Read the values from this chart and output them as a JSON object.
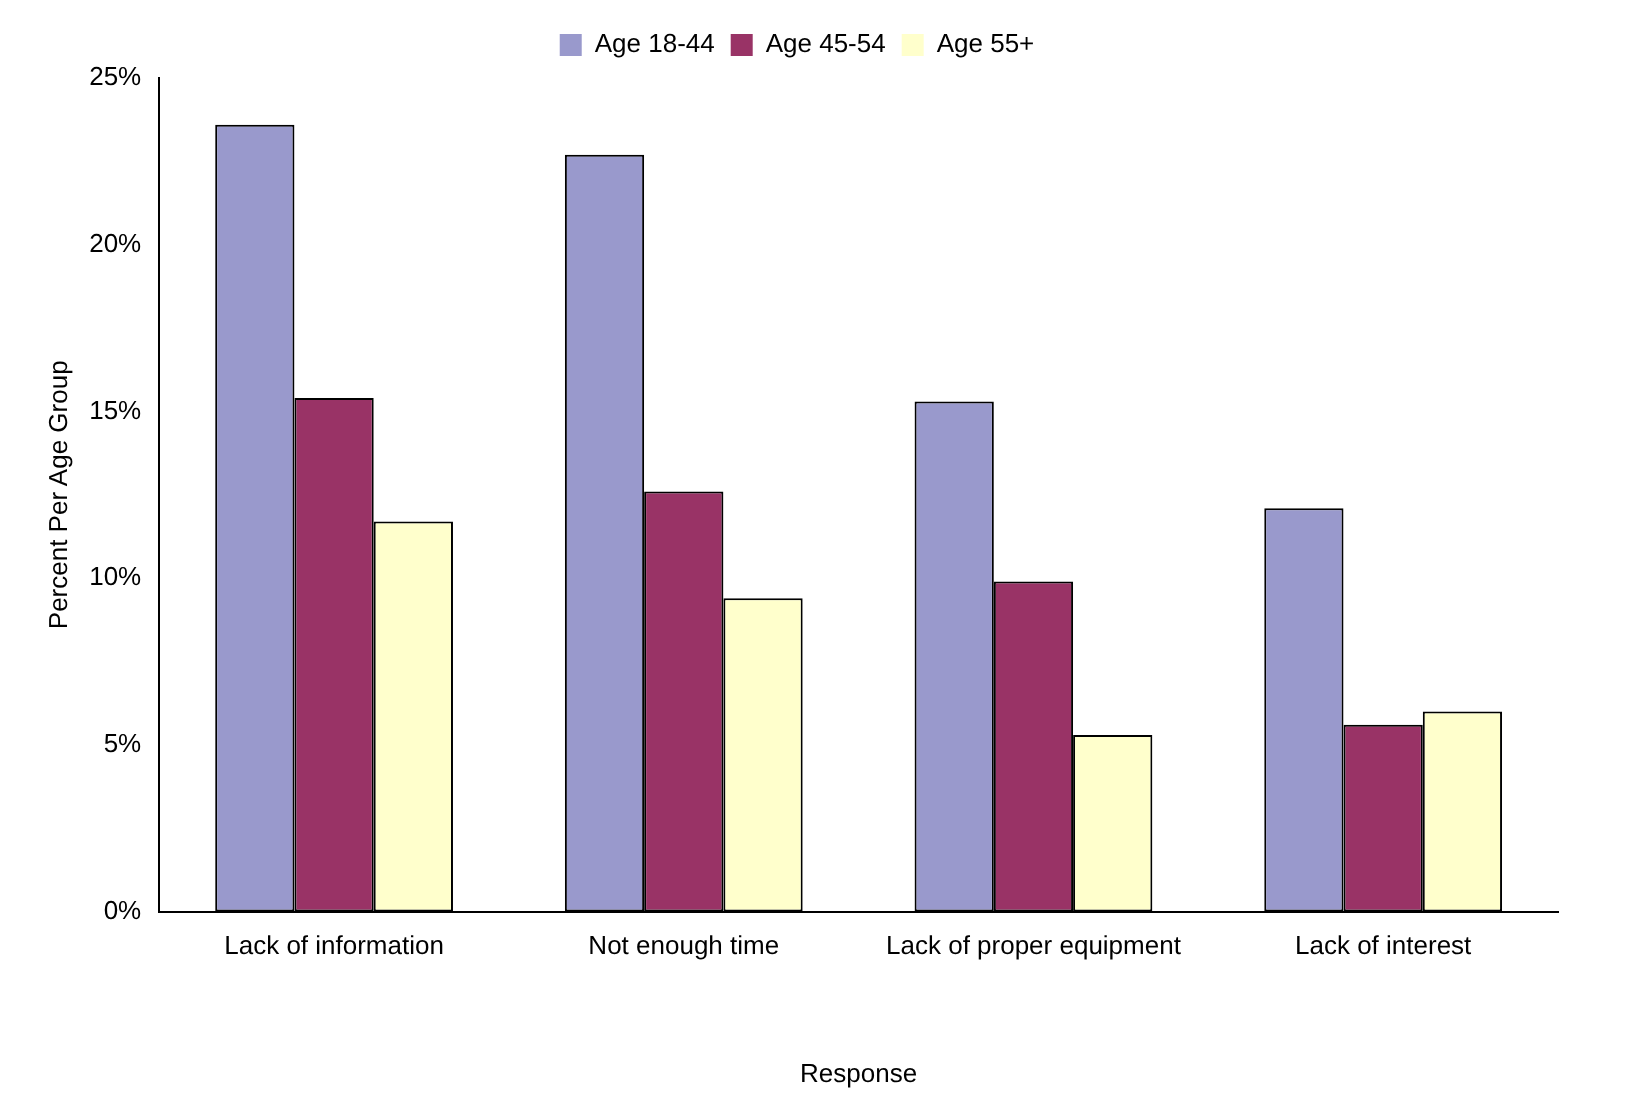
{
  "chart_data": {
    "type": "bar",
    "xlabel": "Response",
    "ylabel": "Percent Per Age Group",
    "categories": [
      "Lack of information",
      "Not enough time",
      "Lack of proper equipment",
      "Lack of interest"
    ],
    "series": [
      {
        "name": "Age 18-44",
        "color": "#9999cc",
        "values": [
          23.6,
          22.7,
          15.3,
          12.1
        ]
      },
      {
        "name": "Age 45-54",
        "color": "#993366",
        "values": [
          15.4,
          12.6,
          9.9,
          5.6
        ]
      },
      {
        "name": "Age 55+",
        "color": "#ffffcc",
        "values": [
          11.7,
          9.4,
          5.3,
          6.0
        ]
      }
    ],
    "ylim": [
      0,
      25
    ],
    "yticks": [
      {
        "value": 0,
        "label": "0%"
      },
      {
        "value": 5,
        "label": "5%"
      },
      {
        "value": 10,
        "label": "10%"
      },
      {
        "value": 15,
        "label": "15%"
      },
      {
        "value": 20,
        "label": "20%"
      },
      {
        "value": 25,
        "label": "25%"
      }
    ],
    "grid": false,
    "legend": "top"
  }
}
